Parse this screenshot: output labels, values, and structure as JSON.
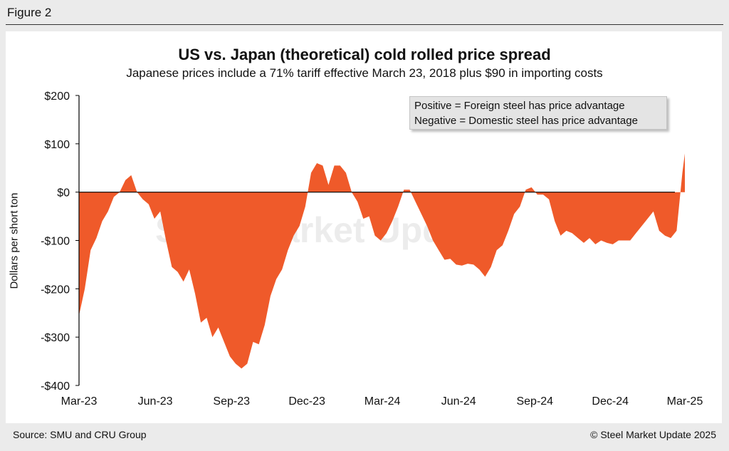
{
  "figure_label": "Figure 2",
  "source": "Source: SMU and CRU Group",
  "copyright": "© Steel Market Update 2025",
  "watermark": "Steel Market Update",
  "colors": {
    "area": "#ef5a2a",
    "zero_line": "#000000",
    "axis": "#000000"
  },
  "chart_data": {
    "type": "area",
    "title": "US vs. Japan (theoretical) cold rolled price spread",
    "subtitle": "Japanese prices include a 71% tariff effective March 23, 2018 plus $90 in importing costs",
    "ylabel": "Dollars per short ton",
    "xlabel": "",
    "ylim": [
      -400,
      200
    ],
    "yticks": [
      200,
      100,
      0,
      -100,
      -200,
      -300,
      -400
    ],
    "ytick_labels": [
      "$200",
      "$100",
      "$0",
      "-$100",
      "-$200",
      "-$300",
      "-$400"
    ],
    "xlim": [
      "2023-03-01",
      "2025-03-01"
    ],
    "xticks": [
      "2023-03-01",
      "2023-06-01",
      "2023-09-01",
      "2023-12-01",
      "2024-03-01",
      "2024-06-01",
      "2024-09-01",
      "2024-12-01",
      "2025-03-01"
    ],
    "xtick_labels": [
      "Mar-23",
      "Jun-23",
      "Sep-23",
      "Dec-23",
      "Mar-24",
      "Jun-24",
      "Sep-24",
      "Dec-24",
      "Mar-25"
    ],
    "grid": false,
    "legend_notes": [
      "Positive = Foreign steel has price advantage",
      "Negative = Domestic steel has price advantage"
    ],
    "legend_position": "top-right",
    "series": [
      {
        "x": [
          "2023-03-01",
          "2023-03-08",
          "2023-03-15",
          "2023-03-22",
          "2023-03-29",
          "2023-04-05",
          "2023-04-12",
          "2023-04-19",
          "2023-04-26",
          "2023-05-03",
          "2023-05-10",
          "2023-05-17",
          "2023-05-24",
          "2023-05-31",
          "2023-06-07",
          "2023-06-14",
          "2023-06-21",
          "2023-06-28",
          "2023-07-05",
          "2023-07-12",
          "2023-07-19",
          "2023-07-26",
          "2023-08-02",
          "2023-08-09",
          "2023-08-16",
          "2023-08-23",
          "2023-08-30",
          "2023-09-06",
          "2023-09-13",
          "2023-09-20",
          "2023-09-27",
          "2023-10-04",
          "2023-10-11",
          "2023-10-18",
          "2023-10-25",
          "2023-11-01",
          "2023-11-08",
          "2023-11-15",
          "2023-11-22",
          "2023-11-29",
          "2023-12-06",
          "2023-12-13",
          "2023-12-20",
          "2023-12-27",
          "2024-01-03",
          "2024-01-10",
          "2024-01-17",
          "2024-01-24",
          "2024-01-31",
          "2024-02-07",
          "2024-02-14",
          "2024-02-21",
          "2024-02-28",
          "2024-03-06",
          "2024-03-13",
          "2024-03-20",
          "2024-03-27",
          "2024-04-03",
          "2024-04-10",
          "2024-04-17",
          "2024-04-24",
          "2024-05-01",
          "2024-05-08",
          "2024-05-15",
          "2024-05-22",
          "2024-05-29",
          "2024-06-05",
          "2024-06-12",
          "2024-06-19",
          "2024-06-26",
          "2024-07-03",
          "2024-07-10",
          "2024-07-17",
          "2024-07-24",
          "2024-07-31",
          "2024-08-07",
          "2024-08-14",
          "2024-08-21",
          "2024-08-28",
          "2024-09-04",
          "2024-09-11",
          "2024-09-18",
          "2024-09-25",
          "2024-10-02",
          "2024-10-09",
          "2024-10-16",
          "2024-10-23",
          "2024-10-30",
          "2024-11-06",
          "2024-11-13",
          "2024-11-20",
          "2024-11-27",
          "2024-12-04",
          "2024-12-11",
          "2024-12-18",
          "2024-12-25",
          "2025-01-01",
          "2025-01-08",
          "2025-01-15",
          "2025-01-22",
          "2025-01-29",
          "2025-02-05",
          "2025-02-12",
          "2025-02-19",
          "2025-02-26",
          "2025-03-01"
        ],
        "values": [
          -255,
          -200,
          -120,
          -95,
          -60,
          -40,
          -10,
          0,
          25,
          35,
          0,
          -15,
          -25,
          -55,
          -40,
          -100,
          -155,
          -165,
          -185,
          -160,
          -210,
          -270,
          -260,
          -300,
          -280,
          -310,
          -340,
          -355,
          -365,
          -355,
          -310,
          -315,
          -275,
          -215,
          -180,
          -160,
          -120,
          -90,
          -70,
          -30,
          40,
          60,
          55,
          15,
          55,
          55,
          40,
          0,
          -20,
          -55,
          -50,
          -90,
          -100,
          -85,
          -60,
          -30,
          5,
          5,
          -20,
          -45,
          -70,
          -100,
          -120,
          -140,
          -138,
          -150,
          -152,
          -148,
          -150,
          -160,
          -175,
          -155,
          -120,
          -110,
          -80,
          -45,
          -30,
          5,
          10,
          -5,
          -5,
          -15,
          -60,
          -90,
          -80,
          -85,
          -95,
          -105,
          -95,
          -108,
          -100,
          -105,
          -108,
          -100,
          -100,
          -100,
          -85,
          -70,
          -55,
          -40,
          -80,
          -90,
          -95,
          -80,
          40,
          80
        ]
      }
    ]
  }
}
